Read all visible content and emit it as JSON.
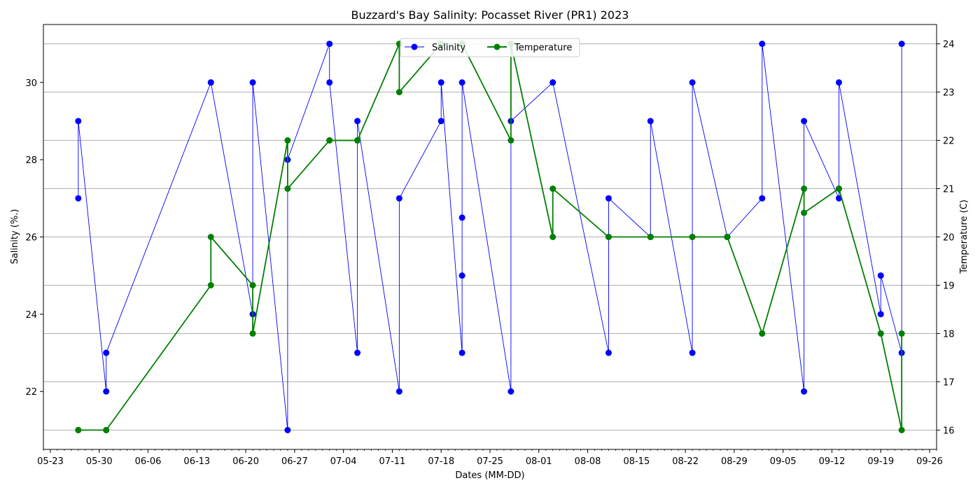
{
  "chart_data": {
    "type": "line",
    "title": "Buzzard's Bay Salinity: Pocasset River (PR1) 2023",
    "xlabel": "Dates (MM-DD)",
    "ylabel_left": "Salinity (%.)",
    "ylabel_right": "Temperature (C)",
    "x_ticks": [
      "05-23",
      "05-30",
      "06-06",
      "06-13",
      "06-20",
      "06-27",
      "07-04",
      "07-11",
      "07-18",
      "07-25",
      "08-01",
      "08-08",
      "08-15",
      "08-22",
      "08-29",
      "09-05",
      "09-12",
      "09-19",
      "09-26"
    ],
    "xlim": [
      "2023-05-22",
      "2023-09-27"
    ],
    "ylim_left": [
      20.5,
      31.5
    ],
    "ylim_right": [
      15.6,
      24.4
    ],
    "yticks_left": [
      22,
      24,
      26,
      28,
      30
    ],
    "yticks_right": [
      16,
      17,
      18,
      19,
      20,
      21,
      22,
      23,
      24
    ],
    "grid": "horizontal, right axis",
    "legend_position": "top-center",
    "series": [
      {
        "name": "Salinity",
        "axis": "left",
        "color": "#0000ff",
        "points": [
          {
            "x": "2023-05-27",
            "y": 27
          },
          {
            "x": "2023-05-27",
            "y": 29
          },
          {
            "x": "2023-05-31",
            "y": 22
          },
          {
            "x": "2023-05-31",
            "y": 23
          },
          {
            "x": "2023-06-15",
            "y": 30
          },
          {
            "x": "2023-06-15",
            "y": 30
          },
          {
            "x": "2023-06-21",
            "y": 24
          },
          {
            "x": "2023-06-21",
            "y": 30
          },
          {
            "x": "2023-06-26",
            "y": 21
          },
          {
            "x": "2023-06-26",
            "y": 28
          },
          {
            "x": "2023-07-02",
            "y": 31
          },
          {
            "x": "2023-07-02",
            "y": 30
          },
          {
            "x": "2023-07-06",
            "y": 23
          },
          {
            "x": "2023-07-06",
            "y": 29
          },
          {
            "x": "2023-07-12",
            "y": 22
          },
          {
            "x": "2023-07-12",
            "y": 27
          },
          {
            "x": "2023-07-18",
            "y": 29
          },
          {
            "x": "2023-07-18",
            "y": 30
          },
          {
            "x": "2023-07-21",
            "y": 23
          },
          {
            "x": "2023-07-21",
            "y": 25
          },
          {
            "x": "2023-07-21",
            "y": 26.5
          },
          {
            "x": "2023-07-21",
            "y": 30
          },
          {
            "x": "2023-07-28",
            "y": 22
          },
          {
            "x": "2023-07-28",
            "y": 29
          },
          {
            "x": "2023-08-03",
            "y": 30
          },
          {
            "x": "2023-08-03",
            "y": 30
          },
          {
            "x": "2023-08-11",
            "y": 23
          },
          {
            "x": "2023-08-11",
            "y": 27
          },
          {
            "x": "2023-08-17",
            "y": 26
          },
          {
            "x": "2023-08-17",
            "y": 29
          },
          {
            "x": "2023-08-23",
            "y": 23
          },
          {
            "x": "2023-08-23",
            "y": 30
          },
          {
            "x": "2023-08-28",
            "y": 26
          },
          {
            "x": "2023-08-28",
            "y": 26
          },
          {
            "x": "2023-09-02",
            "y": 27
          },
          {
            "x": "2023-09-02",
            "y": 31
          },
          {
            "x": "2023-09-08",
            "y": 22
          },
          {
            "x": "2023-09-08",
            "y": 29
          },
          {
            "x": "2023-09-13",
            "y": 27
          },
          {
            "x": "2023-09-13",
            "y": 30
          },
          {
            "x": "2023-09-19",
            "y": 24
          },
          {
            "x": "2023-09-19",
            "y": 25
          },
          {
            "x": "2023-09-22",
            "y": 23
          },
          {
            "x": "2023-09-22",
            "y": 31
          }
        ]
      },
      {
        "name": "Temperature",
        "axis": "right",
        "color": "#008000",
        "points": [
          {
            "x": "2023-05-27",
            "y": 16
          },
          {
            "x": "2023-05-27",
            "y": 16
          },
          {
            "x": "2023-05-31",
            "y": 16
          },
          {
            "x": "2023-05-31",
            "y": 16
          },
          {
            "x": "2023-06-15",
            "y": 19
          },
          {
            "x": "2023-06-15",
            "y": 20
          },
          {
            "x": "2023-06-21",
            "y": 19
          },
          {
            "x": "2023-06-21",
            "y": 18
          },
          {
            "x": "2023-06-26",
            "y": 22
          },
          {
            "x": "2023-06-26",
            "y": 21
          },
          {
            "x": "2023-07-02",
            "y": 22
          },
          {
            "x": "2023-07-02",
            "y": 22
          },
          {
            "x": "2023-07-06",
            "y": 22
          },
          {
            "x": "2023-07-06",
            "y": 22
          },
          {
            "x": "2023-07-12",
            "y": 24
          },
          {
            "x": "2023-07-12",
            "y": 23
          },
          {
            "x": "2023-07-18",
            "y": 24
          },
          {
            "x": "2023-07-18",
            "y": 24
          },
          {
            "x": "2023-07-21",
            "y": 24
          },
          {
            "x": "2023-07-21",
            "y": 24
          },
          {
            "x": "2023-07-21",
            "y": 24
          },
          {
            "x": "2023-07-21",
            "y": 24
          },
          {
            "x": "2023-07-28",
            "y": 22
          },
          {
            "x": "2023-07-28",
            "y": 24
          },
          {
            "x": "2023-08-03",
            "y": 20
          },
          {
            "x": "2023-08-03",
            "y": 21
          },
          {
            "x": "2023-08-11",
            "y": 20
          },
          {
            "x": "2023-08-11",
            "y": 20
          },
          {
            "x": "2023-08-17",
            "y": 20
          },
          {
            "x": "2023-08-17",
            "y": 20
          },
          {
            "x": "2023-08-23",
            "y": 20
          },
          {
            "x": "2023-08-23",
            "y": 20
          },
          {
            "x": "2023-08-28",
            "y": 20
          },
          {
            "x": "2023-08-28",
            "y": 20
          },
          {
            "x": "2023-09-02",
            "y": 18
          },
          {
            "x": "2023-09-02",
            "y": 18
          },
          {
            "x": "2023-09-08",
            "y": 21
          },
          {
            "x": "2023-09-08",
            "y": 20.5
          },
          {
            "x": "2023-09-13",
            "y": 21
          },
          {
            "x": "2023-09-13",
            "y": 21
          },
          {
            "x": "2023-09-19",
            "y": 18
          },
          {
            "x": "2023-09-19",
            "y": 18
          },
          {
            "x": "2023-09-22",
            "y": 16
          },
          {
            "x": "2023-09-22",
            "y": 18
          }
        ]
      }
    ]
  }
}
